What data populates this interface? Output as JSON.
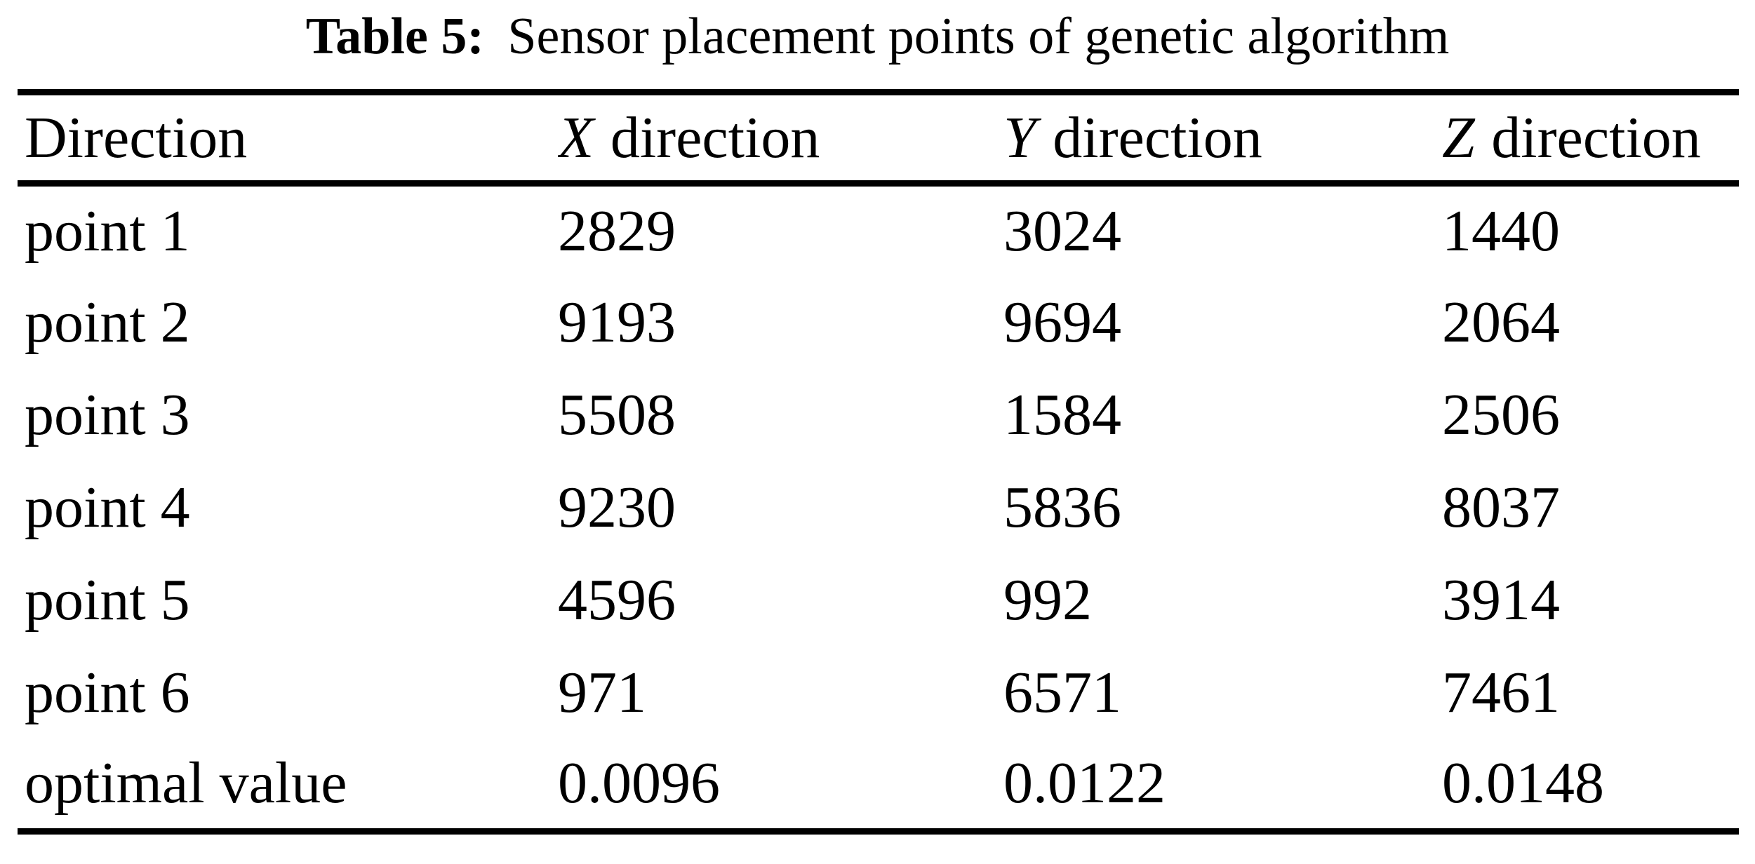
{
  "title": {
    "label": "Table 5:",
    "text": "Sensor placement points of genetic algorithm"
  },
  "colors": {
    "text": "#000000",
    "background": "#ffffff",
    "rule": "#000000"
  },
  "table": {
    "columns": [
      {
        "var": "",
        "rest": "Direction"
      },
      {
        "var": "X",
        "rest": "direction"
      },
      {
        "var": "Y",
        "rest": "direction"
      },
      {
        "var": "Z",
        "rest": "direction"
      }
    ],
    "rows": [
      {
        "label": "point 1",
        "x": "2829",
        "y": "3024",
        "z": "1440"
      },
      {
        "label": "point 2",
        "x": "9193",
        "y": "9694",
        "z": "2064"
      },
      {
        "label": "point 3",
        "x": "5508",
        "y": "1584",
        "z": "2506"
      },
      {
        "label": "point 4",
        "x": "9230",
        "y": "5836",
        "z": "8037"
      },
      {
        "label": "point 5",
        "x": "4596",
        "y": "992",
        "z": "3914"
      },
      {
        "label": "point 6",
        "x": "971",
        "y": "6571",
        "z": "7461"
      },
      {
        "label": "optimal value",
        "x": "0.0096",
        "y": "0.0122",
        "z": "0.0148"
      }
    ]
  }
}
